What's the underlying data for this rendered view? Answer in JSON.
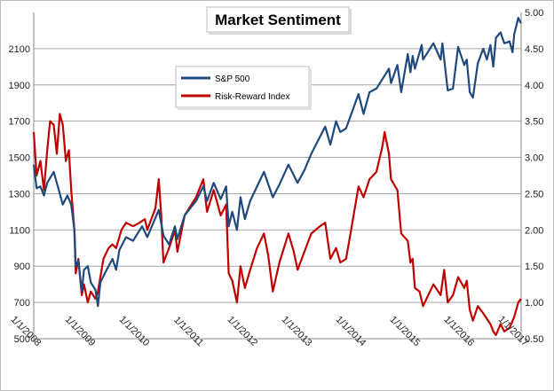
{
  "chart_data": {
    "type": "line",
    "title": "Market Sentiment",
    "xlabel": "",
    "ylabel_left": "",
    "ylabel_right": "",
    "x_ticks": [
      "1/1/2008",
      "1/1/2009",
      "1/1/2010",
      "1/1/2011",
      "1/1/2012",
      "1/1/2013",
      "1/1/2014",
      "1/1/2015",
      "1/1/2016",
      "1/1/2017"
    ],
    "x_range": [
      "2008-01-01",
      "2017-01-01"
    ],
    "y_left": {
      "ticks": [
        "500",
        "700",
        "900",
        "1100",
        "1300",
        "1500",
        "1700",
        "1900",
        "2100"
      ],
      "range": [
        500,
        2300
      ]
    },
    "y_right": {
      "ticks": [
        "0.50",
        "1.00",
        "1.50",
        "2.00",
        "2.50",
        "3.00",
        "3.50",
        "4.00",
        "4.50",
        "5.00"
      ],
      "range": [
        0.5,
        5.0
      ]
    },
    "grid": "horizontal",
    "legend": "upper-left inside plot",
    "series": [
      {
        "name": "S&P 500",
        "axis": "left",
        "color": "#1f497d",
        "points": [
          [
            "2008-01-01",
            1460
          ],
          [
            "2008-01-20",
            1330
          ],
          [
            "2008-02-15",
            1340
          ],
          [
            "2008-03-10",
            1290
          ],
          [
            "2008-04-01",
            1360
          ],
          [
            "2008-05-15",
            1420
          ],
          [
            "2008-06-15",
            1330
          ],
          [
            "2008-07-15",
            1240
          ],
          [
            "2008-08-15",
            1290
          ],
          [
            "2008-09-10",
            1240
          ],
          [
            "2008-10-01",
            1100
          ],
          [
            "2008-10-10",
            900
          ],
          [
            "2008-10-28",
            930
          ],
          [
            "2008-11-20",
            760
          ],
          [
            "2008-12-05",
            880
          ],
          [
            "2008-12-31",
            900
          ],
          [
            "2009-01-20",
            810
          ],
          [
            "2009-02-20",
            770
          ],
          [
            "2009-03-09",
            680
          ],
          [
            "2009-03-25",
            810
          ],
          [
            "2009-04-30",
            870
          ],
          [
            "2009-06-15",
            940
          ],
          [
            "2009-07-10",
            880
          ],
          [
            "2009-08-01",
            990
          ],
          [
            "2009-09-15",
            1060
          ],
          [
            "2009-11-01",
            1040
          ],
          [
            "2010-01-01",
            1120
          ],
          [
            "2010-02-05",
            1060
          ],
          [
            "2010-04-23",
            1210
          ],
          [
            "2010-05-25",
            1070
          ],
          [
            "2010-07-02",
            1020
          ],
          [
            "2010-08-10",
            1120
          ],
          [
            "2010-08-27",
            1050
          ],
          [
            "2010-10-15",
            1180
          ],
          [
            "2010-12-31",
            1260
          ],
          [
            "2011-02-18",
            1340
          ],
          [
            "2011-03-15",
            1260
          ],
          [
            "2011-04-29",
            1360
          ],
          [
            "2011-06-15",
            1270
          ],
          [
            "2011-07-22",
            1340
          ],
          [
            "2011-08-08",
            1120
          ],
          [
            "2011-09-01",
            1200
          ],
          [
            "2011-10-03",
            1100
          ],
          [
            "2011-10-27",
            1280
          ],
          [
            "2011-11-25",
            1160
          ],
          [
            "2011-12-31",
            1260
          ],
          [
            "2012-04-02",
            1420
          ],
          [
            "2012-06-01",
            1280
          ],
          [
            "2012-07-15",
            1350
          ],
          [
            "2012-09-14",
            1460
          ],
          [
            "2012-11-15",
            1360
          ],
          [
            "2012-12-31",
            1430
          ],
          [
            "2013-02-15",
            1520
          ],
          [
            "2013-05-20",
            1670
          ],
          [
            "2013-06-24",
            1570
          ],
          [
            "2013-08-01",
            1700
          ],
          [
            "2013-08-30",
            1640
          ],
          [
            "2013-10-08",
            1660
          ],
          [
            "2013-12-31",
            1850
          ],
          [
            "2014-02-03",
            1740
          ],
          [
            "2014-03-15",
            1860
          ],
          [
            "2014-05-01",
            1880
          ],
          [
            "2014-07-24",
            1990
          ],
          [
            "2014-08-07",
            1910
          ],
          [
            "2014-09-19",
            2010
          ],
          [
            "2014-10-15",
            1860
          ],
          [
            "2014-11-28",
            2070
          ],
          [
            "2014-12-16",
            1970
          ],
          [
            "2014-12-31",
            2060
          ],
          [
            "2015-01-15",
            1990
          ],
          [
            "2015-03-02",
            2120
          ],
          [
            "2015-03-11",
            2040
          ],
          [
            "2015-05-20",
            2130
          ],
          [
            "2015-07-08",
            2040
          ],
          [
            "2015-07-20",
            2130
          ],
          [
            "2015-08-25",
            1870
          ],
          [
            "2015-09-29",
            1880
          ],
          [
            "2015-11-03",
            2110
          ],
          [
            "2015-12-14",
            2010
          ],
          [
            "2015-12-31",
            2040
          ],
          [
            "2016-01-20",
            1860
          ],
          [
            "2016-02-11",
            1830
          ],
          [
            "2016-03-15",
            2020
          ],
          [
            "2016-04-20",
            2100
          ],
          [
            "2016-05-15",
            2040
          ],
          [
            "2016-06-08",
            2120
          ],
          [
            "2016-06-27",
            2000
          ],
          [
            "2016-07-15",
            2160
          ],
          [
            "2016-08-15",
            2190
          ],
          [
            "2016-09-09",
            2130
          ],
          [
            "2016-10-15",
            2140
          ],
          [
            "2016-11-04",
            2080
          ],
          [
            "2016-11-15",
            2180
          ],
          [
            "2016-12-13",
            2270
          ],
          [
            "2016-12-31",
            2240
          ]
        ]
      },
      {
        "name": "Risk-Reward Index",
        "axis": "right",
        "color": "#c00000",
        "points": [
          [
            "2008-01-01",
            3.35
          ],
          [
            "2008-01-20",
            2.75
          ],
          [
            "2008-02-15",
            2.95
          ],
          [
            "2008-03-10",
            2.55
          ],
          [
            "2008-04-01",
            3.1
          ],
          [
            "2008-04-20",
            3.5
          ],
          [
            "2008-05-15",
            3.45
          ],
          [
            "2008-06-05",
            3.05
          ],
          [
            "2008-06-25",
            3.6
          ],
          [
            "2008-07-15",
            3.45
          ],
          [
            "2008-08-05",
            2.95
          ],
          [
            "2008-08-25",
            3.1
          ],
          [
            "2008-09-10",
            2.55
          ],
          [
            "2008-10-01",
            2.0
          ],
          [
            "2008-10-10",
            1.4
          ],
          [
            "2008-10-28",
            1.6
          ],
          [
            "2008-11-20",
            1.1
          ],
          [
            "2008-12-05",
            1.25
          ],
          [
            "2008-12-31",
            1.0
          ],
          [
            "2009-01-20",
            1.15
          ],
          [
            "2009-02-20",
            1.05
          ],
          [
            "2009-03-09",
            1.15
          ],
          [
            "2009-04-15",
            1.6
          ],
          [
            "2009-05-20",
            1.75
          ],
          [
            "2009-06-15",
            1.8
          ],
          [
            "2009-07-10",
            1.75
          ],
          [
            "2009-08-15",
            2.0
          ],
          [
            "2009-09-15",
            2.1
          ],
          [
            "2009-11-01",
            2.05
          ],
          [
            "2009-12-15",
            2.1
          ],
          [
            "2010-01-20",
            2.15
          ],
          [
            "2010-02-05",
            2.0
          ],
          [
            "2010-04-01",
            2.3
          ],
          [
            "2010-04-23",
            2.7
          ],
          [
            "2010-05-10",
            2.2
          ],
          [
            "2010-05-25",
            1.55
          ],
          [
            "2010-07-02",
            1.75
          ],
          [
            "2010-08-10",
            2.0
          ],
          [
            "2010-08-27",
            1.7
          ],
          [
            "2010-10-15",
            2.2
          ],
          [
            "2010-12-31",
            2.45
          ],
          [
            "2011-02-18",
            2.7
          ],
          [
            "2011-03-15",
            2.25
          ],
          [
            "2011-04-29",
            2.55
          ],
          [
            "2011-06-15",
            2.2
          ],
          [
            "2011-07-22",
            2.35
          ],
          [
            "2011-08-08",
            1.4
          ],
          [
            "2011-09-01",
            1.3
          ],
          [
            "2011-10-03",
            1.0
          ],
          [
            "2011-10-27",
            1.5
          ],
          [
            "2011-11-25",
            1.2
          ],
          [
            "2011-12-31",
            1.45
          ],
          [
            "2012-02-15",
            1.75
          ],
          [
            "2012-04-02",
            1.95
          ],
          [
            "2012-05-01",
            1.65
          ],
          [
            "2012-06-01",
            1.15
          ],
          [
            "2012-07-15",
            1.55
          ],
          [
            "2012-09-14",
            1.95
          ],
          [
            "2012-10-20",
            1.7
          ],
          [
            "2012-11-15",
            1.45
          ],
          [
            "2012-12-31",
            1.7
          ],
          [
            "2013-02-15",
            1.95
          ],
          [
            "2013-04-15",
            2.05
          ],
          [
            "2013-05-20",
            2.1
          ],
          [
            "2013-06-24",
            1.6
          ],
          [
            "2013-08-01",
            1.75
          ],
          [
            "2013-08-30",
            1.55
          ],
          [
            "2013-10-08",
            1.6
          ],
          [
            "2013-11-15",
            2.05
          ],
          [
            "2013-12-31",
            2.6
          ],
          [
            "2014-02-03",
            2.45
          ],
          [
            "2014-03-15",
            2.7
          ],
          [
            "2014-05-01",
            2.8
          ],
          [
            "2014-06-10",
            3.15
          ],
          [
            "2014-06-25",
            3.35
          ],
          [
            "2014-07-24",
            3.05
          ],
          [
            "2014-08-07",
            2.7
          ],
          [
            "2014-09-19",
            2.55
          ],
          [
            "2014-10-15",
            1.95
          ],
          [
            "2014-11-28",
            1.85
          ],
          [
            "2014-12-16",
            1.55
          ],
          [
            "2014-12-31",
            1.6
          ],
          [
            "2015-01-15",
            1.2
          ],
          [
            "2015-02-15",
            1.15
          ],
          [
            "2015-03-11",
            0.95
          ],
          [
            "2015-05-20",
            1.25
          ],
          [
            "2015-07-08",
            1.1
          ],
          [
            "2015-08-01",
            1.45
          ],
          [
            "2015-08-25",
            1.0
          ],
          [
            "2015-09-29",
            1.1
          ],
          [
            "2015-11-03",
            1.35
          ],
          [
            "2015-12-14",
            1.2
          ],
          [
            "2015-12-31",
            1.3
          ],
          [
            "2016-01-20",
            0.9
          ],
          [
            "2016-02-11",
            0.75
          ],
          [
            "2016-03-15",
            0.95
          ],
          [
            "2016-04-20",
            0.85
          ],
          [
            "2016-06-08",
            0.7
          ],
          [
            "2016-06-27",
            0.6
          ],
          [
            "2016-07-15",
            0.55
          ],
          [
            "2016-08-15",
            0.7
          ],
          [
            "2016-09-09",
            0.6
          ],
          [
            "2016-10-15",
            0.65
          ],
          [
            "2016-11-15",
            0.8
          ],
          [
            "2016-12-13",
            1.0
          ],
          [
            "2016-12-31",
            1.05
          ]
        ]
      }
    ]
  }
}
